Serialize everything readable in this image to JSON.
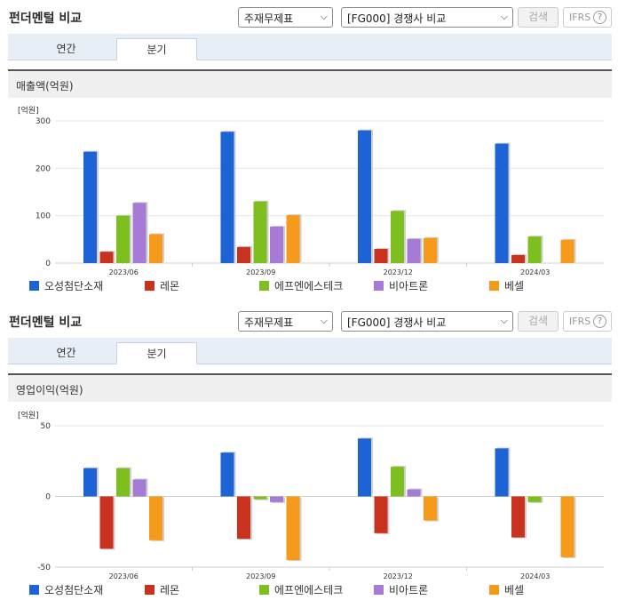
{
  "panels": [
    {
      "title": "펀더멘털 비교",
      "select1": "주재무제표",
      "select2": "[FG000] 경쟁사 비교",
      "search": "검색",
      "ifrs": "IFRS",
      "help": "?",
      "tab_annual": "연간",
      "tab_quarter": "분기",
      "subtitle": "매출액(억원)",
      "unit": "[억원]"
    },
    {
      "title": "펀더멘털 비교",
      "select1": "주재무제표",
      "select2": "[FG000] 경쟁사 비교",
      "search": "검색",
      "ifrs": "IFRS",
      "help": "?",
      "tab_annual": "연간",
      "tab_quarter": "분기",
      "subtitle": "영업이익(억원)",
      "unit": "[억원]"
    }
  ],
  "colors": [
    "#1e63d6",
    "#c8321e",
    "#7dbf1e",
    "#a67bd6",
    "#f59a1a"
  ],
  "chart_data": [
    {
      "type": "bar",
      "title": "매출액(억원)",
      "ylabel": "[억원]",
      "categories": [
        "2023/06",
        "2023/09",
        "2023/12",
        "2024/03"
      ],
      "ylim": [
        0,
        300
      ],
      "yticks": [
        0,
        100,
        200,
        300
      ],
      "legend": "bottom",
      "series": [
        {
          "name": "오성첨단소재",
          "values": [
            235,
            277,
            280,
            252
          ]
        },
        {
          "name": "레몬",
          "values": [
            24,
            34,
            30,
            17
          ]
        },
        {
          "name": "에프엔에스테크",
          "values": [
            100,
            130,
            110,
            56
          ]
        },
        {
          "name": "비아트론",
          "values": [
            127,
            77,
            51,
            null
          ]
        },
        {
          "name": "베셀",
          "values": [
            61,
            101,
            53,
            49
          ]
        }
      ]
    },
    {
      "type": "bar",
      "title": "영업이익(억원)",
      "ylabel": "[억원]",
      "categories": [
        "2023/06",
        "2023/09",
        "2023/12",
        "2024/03"
      ],
      "ylim": [
        -50,
        50
      ],
      "yticks": [
        -50,
        0,
        50
      ],
      "legend": "bottom",
      "series": [
        {
          "name": "오성첨단소재",
          "values": [
            20,
            31,
            41,
            34
          ]
        },
        {
          "name": "레몬",
          "values": [
            -37,
            -30,
            -26,
            -29
          ]
        },
        {
          "name": "에프엔에스테크",
          "values": [
            20,
            -2,
            21,
            -4
          ]
        },
        {
          "name": "비아트론",
          "values": [
            12,
            -4,
            5,
            null
          ]
        },
        {
          "name": "베셀",
          "values": [
            -31,
            -45,
            -17,
            -43
          ]
        }
      ]
    }
  ]
}
